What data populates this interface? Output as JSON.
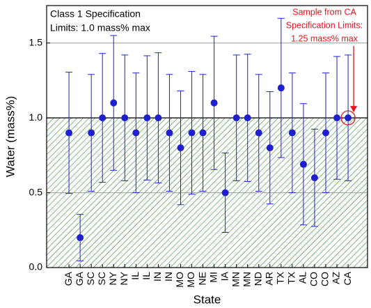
{
  "chart_data": {
    "type": "errorbar-scatter",
    "xlabel": "State",
    "ylabel": "Water (mass%)",
    "annotations": [
      "Class 1 Specification",
      "Limits: 1.0 mass% max"
    ],
    "ca_annotations": [
      "Sample from CA",
      "Specification Limits:",
      "1.25 mass% max"
    ],
    "categories": [
      "GA",
      "GA",
      "SC",
      "SC",
      "NY",
      "NY",
      "IL",
      "IL",
      "IN",
      "IN",
      "MO",
      "MO",
      "NE",
      "MI",
      "IA",
      "MN",
      "MN",
      "ND",
      "AR",
      "TX",
      "TX",
      "AL",
      "CO",
      "CO",
      "AZ",
      "CA"
    ],
    "values": [
      0.9,
      0.2,
      0.9,
      1.0,
      1.1,
      1.0,
      0.9,
      1.0,
      1.0,
      0.9,
      0.8,
      0.9,
      0.9,
      1.1,
      0.5,
      1.0,
      1.0,
      0.9,
      0.8,
      1.2,
      0.9,
      0.69,
      0.6,
      0.9,
      1.0,
      1.0
    ],
    "errors": [
      0.405,
      0.155,
      0.39,
      0.43,
      0.45,
      0.42,
      0.4,
      0.415,
      0.435,
      0.39,
      0.38,
      0.41,
      0.39,
      0.445,
      0.265,
      0.42,
      0.425,
      0.39,
      0.375,
      0.465,
      0.4,
      0.405,
      0.325,
      0.4,
      0.41,
      0.42
    ],
    "color": "#1f1fd0",
    "limit": 1.0,
    "limit_color": "#2e8b2e",
    "highlight_color": "#e8121b",
    "ylim": [
      0,
      1.75
    ],
    "yticks": [
      {
        "value": 0,
        "label": "0.0"
      },
      {
        "value": 0.5,
        "label": "0.5"
      },
      {
        "value": 1.0,
        "label": "1.0"
      },
      {
        "value": 1.5,
        "label": "1.5"
      }
    ],
    "grid": true
  }
}
